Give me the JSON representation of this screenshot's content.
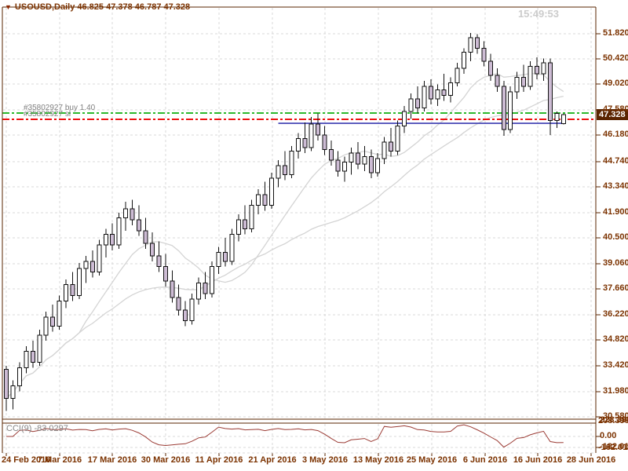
{
  "header": {
    "arrow": "▼",
    "symbol_line": "USOUSD,Daily  46.825 47.378 46.787 47.328"
  },
  "clock": "15:49:53",
  "orders": {
    "buy_label": "#35802927 buy 1.40",
    "sl_label": "#35802927 sl",
    "buy_price": 47.42,
    "sl_price": 47.07
  },
  "y_axis": {
    "labels": [
      "51.820",
      "50.420",
      "49.020",
      "47.580",
      "46.180",
      "44.740",
      "43.340",
      "41.900",
      "40.500",
      "39.060",
      "37.660",
      "36.220",
      "34.820",
      "33.420",
      "31.980",
      "30.580"
    ],
    "values": [
      51.82,
      50.42,
      49.02,
      47.58,
      46.18,
      44.74,
      43.34,
      41.9,
      40.5,
      39.06,
      37.66,
      36.22,
      34.82,
      33.42,
      31.98,
      30.58
    ],
    "current_price": "47.328"
  },
  "x_axis": {
    "labels": [
      "24 Feb 2016",
      "7 Mar 2016",
      "17 Mar 2016",
      "30 Mar 2016",
      "11 Apr 2016",
      "21 Apr 2016",
      "3 May 2016",
      "13 May 2016",
      "25 May 2016",
      "6 Jun 2016",
      "16 Jun 2016",
      "28 Jun 2016"
    ]
  },
  "indicator": {
    "label": "CCI(9) -83.0297",
    "axis_top": [
      "228.3981",
      "208.398"
    ],
    "axis_zero": "0.00",
    "axis_bottom": [
      "-182.011",
      "-162.011"
    ],
    "period": 9,
    "current": -83.0297
  },
  "colors": {
    "frame": "#5a2400",
    "axis_text": "#7b3200",
    "grid": "#d9d9d9",
    "candle_up": "#ffffff",
    "candle_down": "#cdbcd4",
    "candle_outline": "#111111",
    "ma": "#d4d4d4",
    "buy_line": "#2db82d",
    "sl_line": "#ee1111",
    "blue_line": "#3a3ab0",
    "cci_line": "#9b3b34",
    "label_gray": "#808080",
    "clock": "#cccccc",
    "badge_bg": "#5a2400",
    "badge_text": "#ffffff"
  },
  "chart_data": {
    "type": "candlestick",
    "symbol": "USOUSD",
    "timeframe": "Daily",
    "y_range": [
      30.49,
      53.25
    ],
    "grid": true,
    "candles": [
      [
        33.2,
        33.4,
        30.9,
        31.6
      ],
      [
        31.6,
        32.6,
        31.0,
        32.3
      ],
      [
        32.3,
        33.6,
        32.0,
        33.3
      ],
      [
        33.3,
        34.5,
        33.0,
        34.2
      ],
      [
        34.2,
        34.8,
        33.3,
        33.6
      ],
      [
        33.6,
        35.4,
        33.4,
        35.1
      ],
      [
        35.1,
        36.4,
        34.8,
        36.1
      ],
      [
        36.1,
        36.8,
        35.3,
        35.6
      ],
      [
        35.6,
        37.3,
        35.4,
        37.0
      ],
      [
        37.0,
        38.2,
        36.6,
        37.9
      ],
      [
        37.9,
        38.6,
        37.0,
        37.3
      ],
      [
        37.3,
        39.1,
        37.1,
        38.8
      ],
      [
        38.8,
        39.5,
        38.0,
        39.2
      ],
      [
        39.2,
        39.8,
        38.3,
        38.6
      ],
      [
        38.6,
        40.4,
        38.4,
        40.1
      ],
      [
        40.1,
        41.0,
        39.4,
        40.7
      ],
      [
        40.7,
        41.3,
        39.8,
        40.1
      ],
      [
        40.1,
        41.9,
        39.9,
        41.6
      ],
      [
        41.6,
        42.5,
        40.9,
        42.1
      ],
      [
        42.1,
        42.6,
        41.2,
        41.5
      ],
      [
        41.5,
        42.3,
        40.6,
        40.9
      ],
      [
        40.9,
        41.6,
        39.9,
        40.2
      ],
      [
        40.2,
        40.8,
        39.2,
        39.5
      ],
      [
        39.5,
        40.3,
        38.6,
        38.9
      ],
      [
        38.9,
        39.6,
        37.8,
        38.1
      ],
      [
        38.1,
        38.7,
        36.9,
        37.2
      ],
      [
        37.2,
        37.9,
        36.2,
        36.5
      ],
      [
        36.5,
        37.0,
        35.6,
        35.9
      ],
      [
        35.9,
        37.4,
        35.7,
        37.1
      ],
      [
        37.1,
        38.3,
        36.8,
        38.0
      ],
      [
        38.0,
        38.6,
        37.1,
        37.4
      ],
      [
        37.4,
        39.2,
        37.2,
        38.9
      ],
      [
        38.9,
        40.0,
        38.5,
        39.7
      ],
      [
        39.7,
        40.5,
        38.9,
        39.2
      ],
      [
        39.2,
        41.0,
        39.0,
        40.7
      ],
      [
        40.7,
        41.8,
        40.3,
        41.5
      ],
      [
        41.5,
        42.3,
        40.7,
        41.0
      ],
      [
        41.0,
        42.6,
        40.8,
        42.3
      ],
      [
        42.3,
        43.2,
        41.8,
        42.9
      ],
      [
        42.9,
        43.6,
        42.0,
        42.3
      ],
      [
        42.3,
        44.1,
        42.1,
        43.8
      ],
      [
        43.8,
        44.8,
        43.3,
        44.5
      ],
      [
        44.5,
        45.3,
        43.7,
        44.0
      ],
      [
        44.0,
        45.6,
        43.8,
        45.3
      ],
      [
        45.3,
        46.3,
        44.9,
        46.0
      ],
      [
        46.0,
        46.9,
        45.2,
        45.5
      ],
      [
        45.5,
        47.2,
        45.3,
        46.8
      ],
      [
        46.8,
        47.4,
        45.9,
        46.2
      ],
      [
        46.2,
        46.7,
        45.1,
        45.4
      ],
      [
        45.4,
        45.9,
        44.5,
        44.8
      ],
      [
        44.8,
        45.3,
        43.9,
        44.2
      ],
      [
        44.2,
        45.0,
        43.6,
        44.7
      ],
      [
        44.7,
        45.5,
        44.0,
        45.2
      ],
      [
        45.2,
        45.8,
        44.3,
        44.6
      ],
      [
        44.6,
        45.6,
        44.2,
        45.0
      ],
      [
        45.0,
        45.4,
        43.8,
        44.1
      ],
      [
        44.1,
        45.2,
        43.9,
        44.9
      ],
      [
        44.9,
        46.1,
        44.6,
        45.8
      ],
      [
        45.8,
        46.6,
        45.0,
        45.3
      ],
      [
        45.3,
        47.0,
        45.1,
        46.7
      ],
      [
        46.7,
        47.8,
        46.3,
        47.5
      ],
      [
        47.5,
        48.5,
        47.1,
        48.2
      ],
      [
        48.2,
        48.9,
        47.4,
        47.7
      ],
      [
        47.7,
        49.2,
        47.5,
        48.9
      ],
      [
        48.9,
        49.3,
        47.9,
        48.2
      ],
      [
        48.2,
        49.0,
        47.8,
        48.7
      ],
      [
        48.7,
        49.6,
        48.1,
        48.4
      ],
      [
        48.4,
        49.4,
        48.0,
        49.1
      ],
      [
        49.1,
        50.2,
        48.9,
        49.9
      ],
      [
        49.9,
        51.0,
        49.6,
        50.8
      ],
      [
        50.8,
        51.85,
        50.3,
        51.6
      ],
      [
        51.6,
        51.8,
        50.7,
        51.0
      ],
      [
        51.0,
        51.4,
        50.0,
        50.3
      ],
      [
        50.3,
        50.7,
        49.2,
        49.5
      ],
      [
        49.5,
        49.9,
        48.6,
        48.9
      ],
      [
        48.9,
        49.2,
        46.15,
        46.5
      ],
      [
        46.5,
        48.9,
        46.3,
        48.6
      ],
      [
        48.6,
        49.7,
        48.2,
        49.4
      ],
      [
        49.4,
        50.1,
        48.6,
        48.9
      ],
      [
        48.9,
        50.3,
        48.7,
        50.0
      ],
      [
        50.0,
        50.5,
        49.3,
        49.6
      ],
      [
        49.6,
        50.45,
        49.2,
        50.2
      ],
      [
        50.2,
        50.45,
        46.2,
        47.0
      ],
      [
        47.0,
        47.5,
        46.6,
        47.4
      ],
      [
        46.825,
        47.378,
        46.787,
        47.328
      ]
    ],
    "ma_periods": [
      12,
      30
    ],
    "lines": {
      "buy": 47.42,
      "sl": 47.07,
      "blue": {
        "price": 46.85,
        "span": [
          0.465,
          0.945
        ]
      }
    },
    "cci_period": 9
  }
}
